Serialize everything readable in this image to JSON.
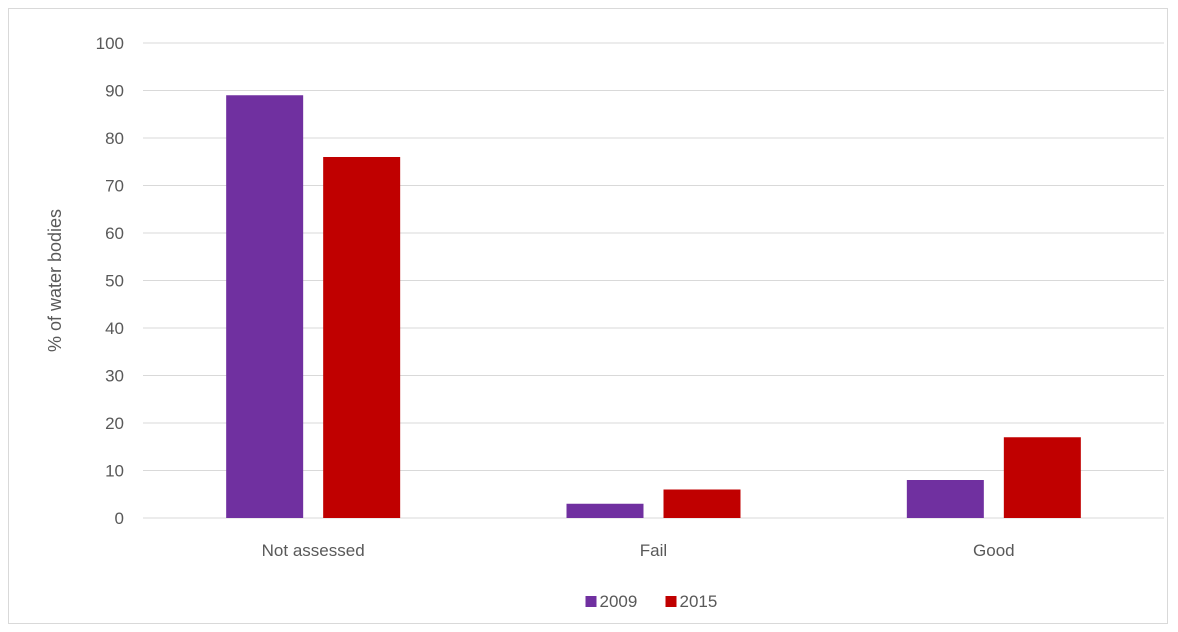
{
  "chart_data": {
    "type": "bar",
    "title": "",
    "xlabel": "",
    "ylabel": "% of water bodies",
    "categories": [
      "Not assessed",
      "Fail",
      "Good"
    ],
    "series": [
      {
        "name": "2009",
        "values": [
          89,
          3,
          8
        ],
        "color": "#7030a0"
      },
      {
        "name": "2015",
        "values": [
          76,
          6,
          17
        ],
        "color": "#c00000"
      }
    ],
    "ylim": [
      0,
      100
    ],
    "yticks": [
      0,
      10,
      20,
      30,
      40,
      50,
      60,
      70,
      80,
      90,
      100
    ],
    "grid": true,
    "legend_position": "bottom"
  }
}
